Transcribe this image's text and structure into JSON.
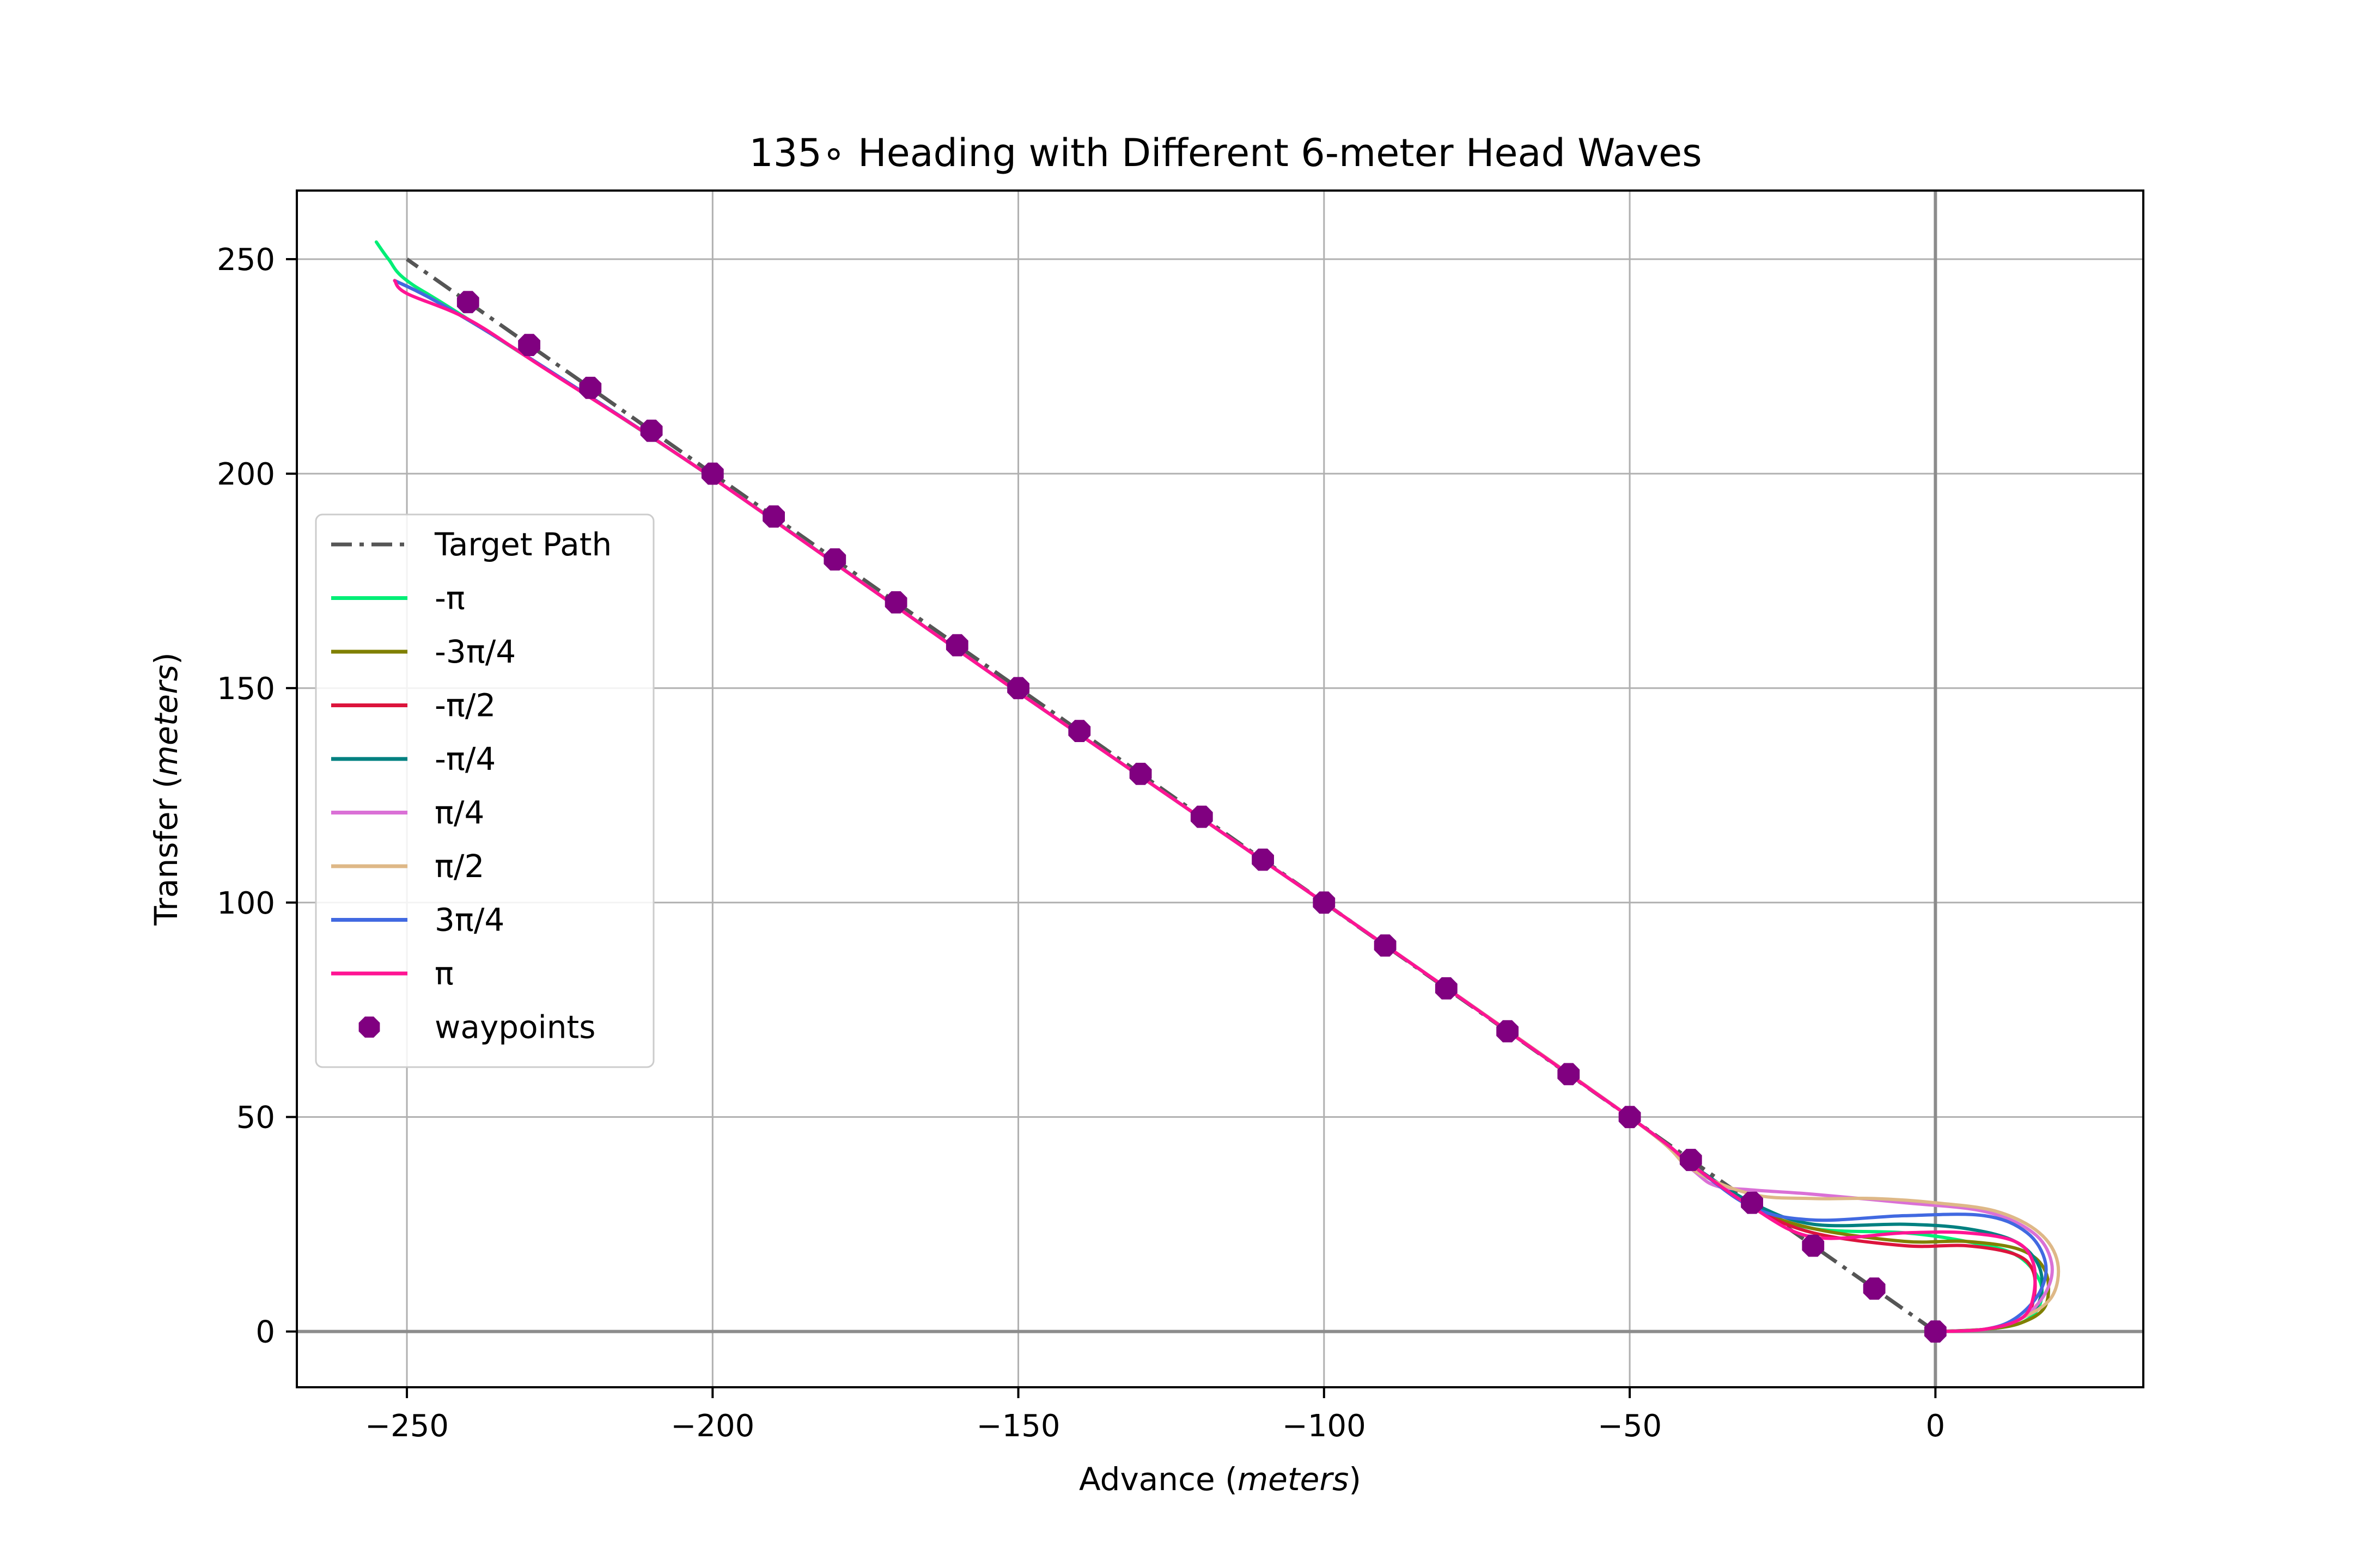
{
  "chart_data": {
    "type": "line",
    "title": "135∘ Heading with Different 6-meter Head Waves",
    "xlabel_text": "Advance  (",
    "xlabel_unit": "meters",
    "xlabel_close": ")",
    "ylabel_text": "Transfer  (",
    "ylabel_unit": "meters",
    "ylabel_close": ")",
    "xlim": [
      -268,
      34
    ],
    "ylim": [
      -13,
      266
    ],
    "xticks": [
      -250,
      -200,
      -150,
      -100,
      -50,
      0
    ],
    "xtick_labels": [
      "−250",
      "−200",
      "−150",
      "−100",
      "−50",
      "0"
    ],
    "yticks": [
      0,
      50,
      100,
      150,
      200,
      250
    ],
    "ytick_labels": [
      "0",
      "50",
      "100",
      "150",
      "200",
      "250"
    ],
    "grid": true,
    "legend_position": "center-left",
    "target_path": {
      "name": "Target Path",
      "color": "#555555",
      "x": [
        0,
        -250
      ],
      "y": [
        0,
        250
      ]
    },
    "series": [
      {
        "name": "-π",
        "color": "#00ee76",
        "x": [
          0,
          8,
          14,
          17,
          17,
          13,
          5,
          -5,
          -20,
          -30,
          -40,
          -50,
          -100,
          -150,
          -200,
          -240,
          -250,
          -253,
          -255
        ],
        "y": [
          0,
          0.5,
          2,
          6,
          12,
          18,
          21,
          23,
          24,
          29,
          39,
          50,
          100,
          149,
          199,
          236,
          245,
          250,
          254
        ]
      },
      {
        "name": "-3π/4",
        "color": "#808000",
        "x": [
          0,
          8,
          14,
          18,
          18,
          14,
          5,
          -5,
          -20,
          -30,
          -40,
          -50,
          -100,
          -150,
          -200,
          -230,
          -245,
          -252
        ],
        "y": [
          0,
          0.5,
          2,
          6,
          14,
          19,
          21,
          21,
          24,
          29,
          39,
          50,
          100,
          149,
          199,
          227,
          240,
          245
        ]
      },
      {
        "name": "-π/2",
        "color": "#dc143c",
        "x": [
          0,
          8,
          14,
          16,
          16,
          13,
          5,
          -5,
          -20,
          -30,
          -40,
          -50,
          -100,
          -150,
          -200,
          -230,
          -245,
          -252
        ],
        "y": [
          0,
          0.5,
          3,
          7,
          14,
          18,
          20,
          20,
          23,
          29,
          39,
          50,
          100,
          149,
          199,
          227,
          240,
          245
        ]
      },
      {
        "name": "-π/4",
        "color": "#008080",
        "x": [
          0,
          8,
          14,
          17,
          17,
          13,
          5,
          -5,
          -20,
          -30,
          -40,
          -50,
          -100,
          -150,
          -200,
          -230,
          -245,
          -252
        ],
        "y": [
          0,
          0.5,
          3,
          7,
          15,
          21,
          24,
          25,
          25,
          30,
          39,
          50,
          100,
          149,
          199,
          227,
          240,
          245
        ]
      },
      {
        "name": "π/4",
        "color": "#da70d6",
        "x": [
          0,
          8,
          14,
          18,
          19,
          16,
          8,
          -5,
          -20,
          -30,
          -36,
          -40,
          -50,
          -100,
          -150,
          -200,
          -230,
          -245,
          -252
        ],
        "y": [
          0,
          0.5,
          3,
          9,
          16,
          23,
          28,
          30,
          32,
          33,
          34,
          38,
          50,
          100,
          149,
          199,
          227,
          240,
          245
        ]
      },
      {
        "name": "π/2",
        "color": "#deb887",
        "x": [
          0,
          8,
          14,
          19,
          20,
          17,
          10,
          0,
          -10,
          -20,
          -30,
          -40,
          -50,
          -100,
          -150,
          -200,
          -230,
          -245,
          -252
        ],
        "y": [
          0,
          0.5,
          3,
          8,
          16,
          23,
          28,
          30,
          31,
          31,
          32,
          38,
          50,
          100,
          149,
          199,
          227,
          240,
          245
        ]
      },
      {
        "name": "3π/4",
        "color": "#4169e1",
        "x": [
          0,
          8,
          13,
          17,
          18,
          15,
          8,
          -5,
          -20,
          -30,
          -40,
          -50,
          -100,
          -150,
          -200,
          -230,
          -245,
          -252
        ],
        "y": [
          0,
          0.5,
          3,
          9,
          16,
          23,
          27,
          27,
          26,
          29,
          39,
          50,
          100,
          149,
          199,
          227,
          240,
          245
        ]
      },
      {
        "name": "π",
        "color": "#ff1493",
        "x": [
          0,
          8,
          14,
          16,
          16,
          13,
          5,
          -5,
          -20,
          -30,
          -40,
          -50,
          -100,
          -150,
          -200,
          -228,
          -240,
          -250,
          -252
        ],
        "y": [
          0,
          0.5,
          3,
          8,
          16,
          21,
          23,
          23,
          22,
          29,
          39,
          50,
          100,
          149,
          199,
          225,
          236,
          242,
          245
        ]
      }
    ],
    "waypoints": {
      "name": "waypoints",
      "color": "#800080",
      "x": [
        0,
        -10,
        -20,
        -30,
        -40,
        -50,
        -60,
        -70,
        -80,
        -90,
        -100,
        -110,
        -120,
        -130,
        -140,
        -150,
        -160,
        -170,
        -180,
        -190,
        -200,
        -210,
        -220,
        -230,
        -240
      ],
      "y": [
        0,
        10,
        20,
        30,
        40,
        50,
        60,
        70,
        80,
        90,
        100,
        110,
        120,
        130,
        140,
        150,
        160,
        170,
        180,
        190,
        200,
        210,
        220,
        230,
        240
      ]
    }
  }
}
